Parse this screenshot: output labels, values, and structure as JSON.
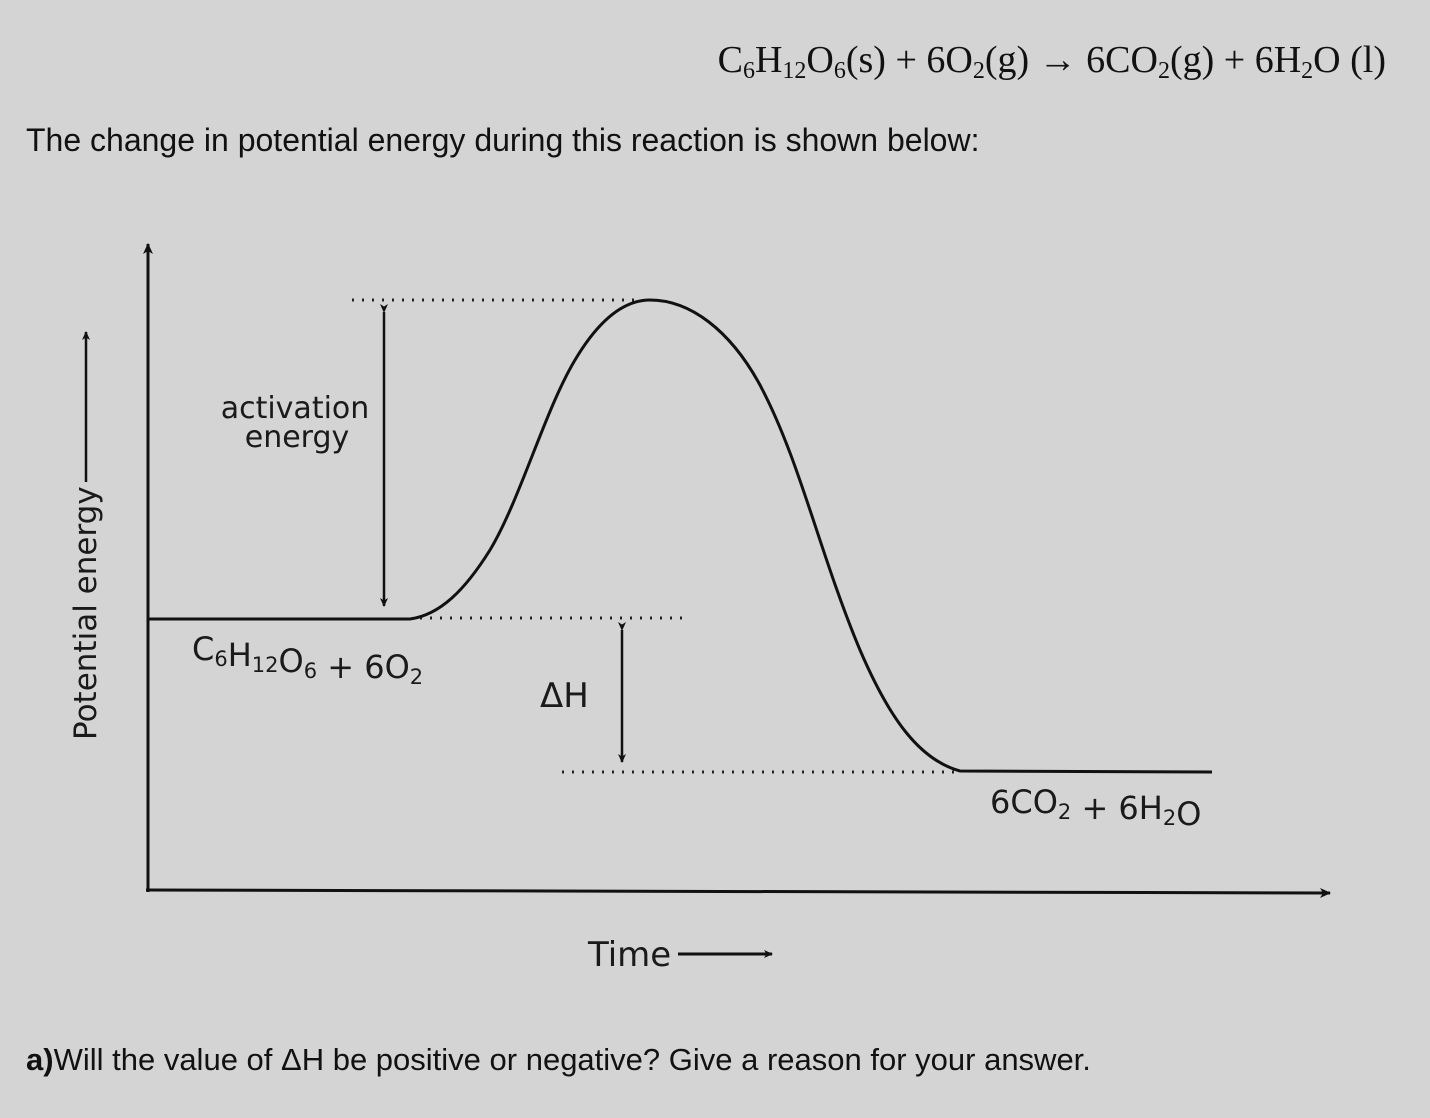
{
  "equation": {
    "reactant1": {
      "coef": "",
      "parts": [
        [
          "C",
          "6"
        ],
        [
          "H",
          "12"
        ],
        [
          "O",
          "6"
        ]
      ],
      "state": "(s)"
    },
    "plus1": "+",
    "reactant2": {
      "coef": "6",
      "parts": [
        [
          "O",
          "2"
        ]
      ],
      "state": "(g)"
    },
    "arrow": "→",
    "product1": {
      "coef": "6",
      "parts": [
        [
          "C",
          ""
        ],
        [
          "O",
          "2"
        ]
      ],
      "state": "(g)"
    },
    "plus2": "+",
    "product2": {
      "coef": "6",
      "parts": [
        [
          "H",
          "2"
        ],
        [
          "O",
          ""
        ]
      ],
      "state": " (l)"
    }
  },
  "intro_text": "The change in potential energy during this reaction is shown below:",
  "diagram": {
    "y_axis_label": "Potential energy",
    "x_axis_label": "Time",
    "activation_label_line1": "activation",
    "activation_label_line2": "energy",
    "delta_h_label": "ΔH",
    "reactants_label": {
      "parts": [
        [
          "C",
          "6"
        ],
        [
          "H",
          "12"
        ],
        [
          "O",
          "6"
        ],
        [
          " + 6O",
          "2"
        ]
      ]
    },
    "products_label": {
      "parts": [
        [
          "6CO",
          "2"
        ],
        [
          " + 6H",
          "2"
        ],
        [
          "O",
          ""
        ]
      ]
    }
  },
  "question": {
    "prefix": "a)",
    "text": "Will the value of ΔH be positive or negative? Give a reason for your answer."
  }
}
